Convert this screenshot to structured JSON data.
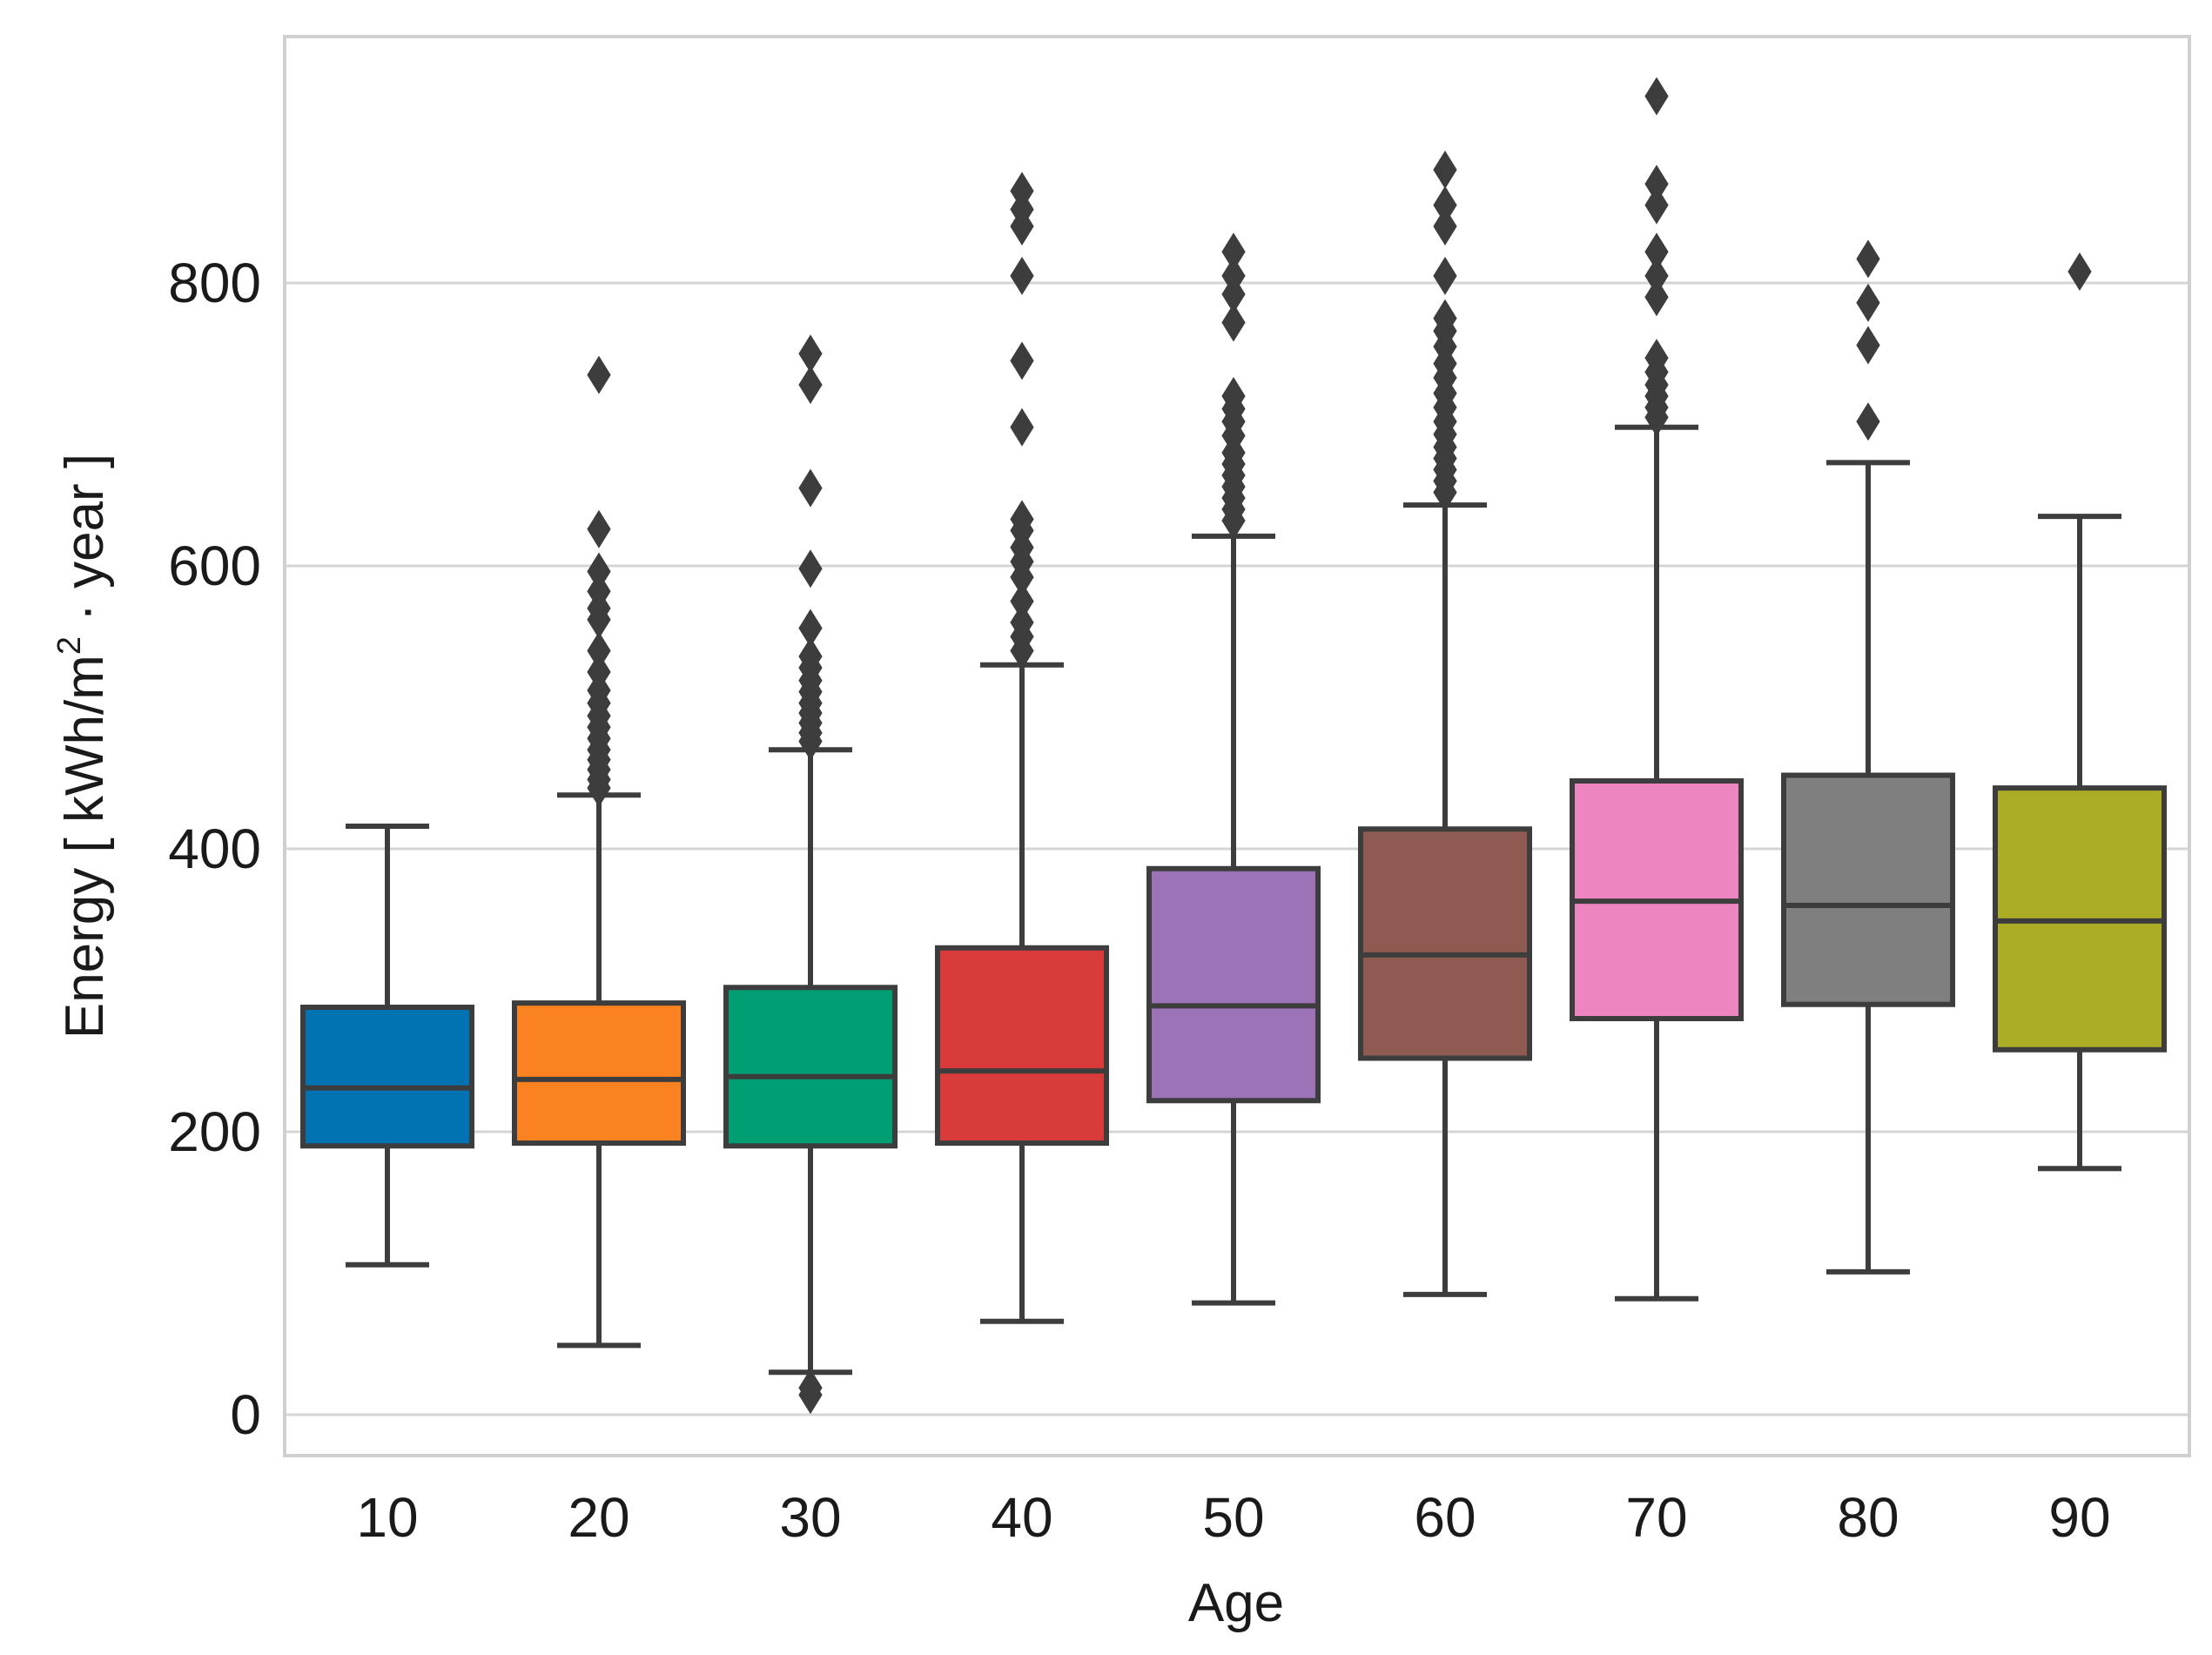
{
  "chart_data": {
    "type": "box",
    "title": "",
    "xlabel": "Age",
    "ylabel_parts": {
      "prefix": "Energy [ kWh/m",
      "superscript": "2",
      "suffix": " · year ]"
    },
    "ylim": [
      -30,
      975
    ],
    "yticks": [
      0,
      200,
      400,
      600,
      800
    ],
    "ytick_labels": [
      "0",
      "200",
      "400",
      "600",
      "800"
    ],
    "grid": true,
    "categories": [
      "10",
      "20",
      "30",
      "40",
      "50",
      "60",
      "70",
      "80",
      "90"
    ],
    "colors": [
      "#0173b2",
      "#fb8220",
      "#029e73",
      "#d93b3b",
      "#9b73b6",
      "#8e5a51",
      "#ec85c0",
      "#7f7f7f",
      "#abad24"
    ],
    "boxes": [
      {
        "label": "10",
        "whislo": 106,
        "q1": 190,
        "med": 231,
        "q3": 288,
        "whishi": 416,
        "fliers": []
      },
      {
        "label": "20",
        "whislo": 49,
        "q1": 192,
        "med": 237,
        "q3": 291,
        "whishi": 438,
        "fliers": [
          443,
          449,
          456,
          463,
          470,
          478,
          486,
          494,
          503,
          512,
          525,
          540,
          562,
          570,
          582,
          596,
          626,
          735
        ]
      },
      {
        "label": "30",
        "whislo": 30,
        "q1": 190,
        "med": 239,
        "q3": 302,
        "whishi": 470,
        "fliers": [
          14,
          19,
          476,
          482,
          489,
          496,
          503,
          511,
          519,
          528,
          536,
          556,
          598,
          655,
          728,
          750
        ]
      },
      {
        "label": "40",
        "whislo": 66,
        "q1": 192,
        "med": 243,
        "q3": 330,
        "whishi": 530,
        "fliers": [
          540,
          550,
          560,
          575,
          592,
          603,
          613,
          625,
          633,
          698,
          745,
          805,
          840,
          852,
          865
        ]
      },
      {
        "label": "50",
        "whislo": 79,
        "q1": 222,
        "med": 289,
        "q3": 386,
        "whishi": 621,
        "fliers": [
          632,
          640,
          648,
          656,
          664,
          672,
          680,
          692,
          702,
          711,
          720,
          772,
          792,
          805,
          822
        ]
      },
      {
        "label": "60",
        "whislo": 85,
        "q1": 252,
        "med": 325,
        "q3": 414,
        "whishi": 643,
        "fliers": [
          652,
          660,
          668,
          676,
          684,
          693,
          702,
          712,
          722,
          733,
          743,
          755,
          766,
          775,
          805,
          840,
          855,
          880
        ]
      },
      {
        "label": "70",
        "whislo": 82,
        "q1": 280,
        "med": 363,
        "q3": 448,
        "whishi": 698,
        "fliers": [
          705,
          712,
          720,
          728,
          737,
          747,
          790,
          805,
          822,
          855,
          870,
          932
        ]
      },
      {
        "label": "80",
        "whislo": 101,
        "q1": 290,
        "med": 360,
        "q3": 452,
        "whishi": 673,
        "fliers": [
          702,
          756,
          786,
          817
        ]
      },
      {
        "label": "90",
        "whislo": 174,
        "q1": 258,
        "med": 349,
        "q3": 443,
        "whishi": 635,
        "fliers": [
          808
        ]
      }
    ]
  }
}
